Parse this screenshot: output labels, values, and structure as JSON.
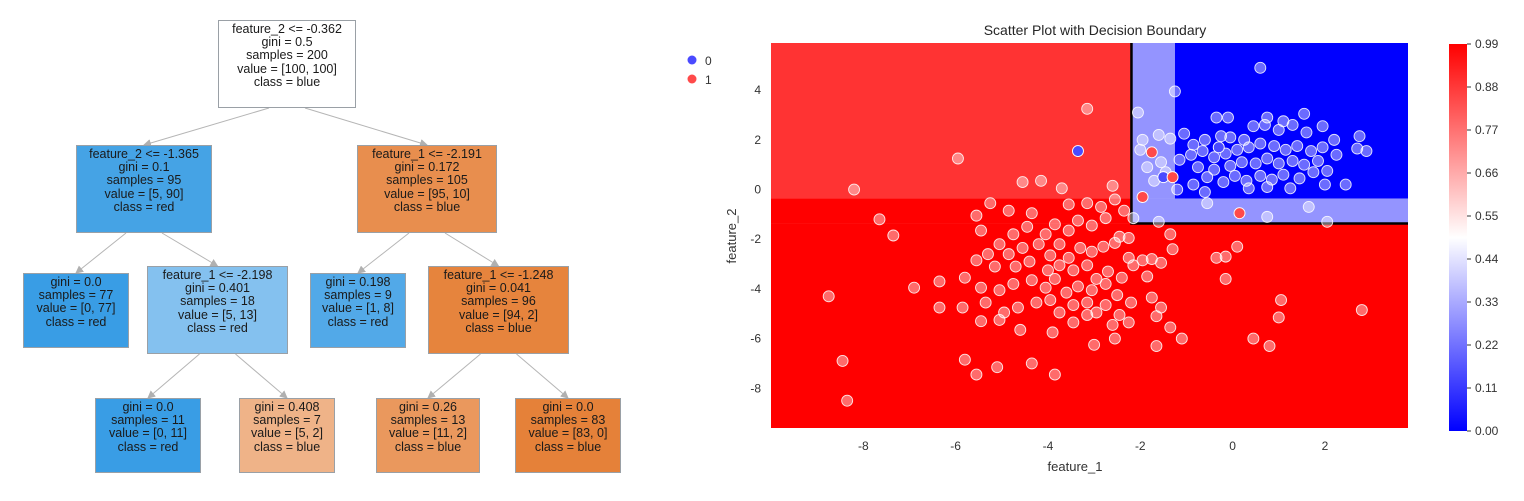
{
  "tree": {
    "nodes": [
      {
        "id": "n0",
        "lines": [
          "feature_2 <= -0.362",
          "gini = 0.5",
          "samples = 200",
          "value = [100, 100]",
          "class = blue"
        ],
        "fill": "#ffffff"
      },
      {
        "id": "n1",
        "lines": [
          "feature_2 <= -1.365",
          "gini = 0.1",
          "samples = 95",
          "value = [5, 90]",
          "class = red"
        ],
        "fill": "#45a3e5"
      },
      {
        "id": "n2",
        "lines": [
          "feature_1 <= -2.191",
          "gini = 0.172",
          "samples = 105",
          "value = [95, 10]",
          "class = blue"
        ],
        "fill": "#e88e4e"
      },
      {
        "id": "n3",
        "lines": [
          "gini = 0.0",
          "samples = 77",
          "value = [0, 77]",
          "class = red"
        ],
        "fill": "#399de5"
      },
      {
        "id": "n4",
        "lines": [
          "feature_1 <= -2.198",
          "gini = 0.401",
          "samples = 18",
          "value = [5, 13]",
          "class = red"
        ],
        "fill": "#84c1ef"
      },
      {
        "id": "n5",
        "lines": [
          "gini = 0.198",
          "samples = 9",
          "value = [1, 8]",
          "class = red"
        ],
        "fill": "#52a9e8"
      },
      {
        "id": "n6",
        "lines": [
          "feature_1 <= -1.248",
          "gini = 0.041",
          "samples = 96",
          "value = [94, 2]",
          "class = blue"
        ],
        "fill": "#e6843d"
      },
      {
        "id": "n7",
        "lines": [
          "gini = 0.0",
          "samples = 11",
          "value = [0, 11]",
          "class = red"
        ],
        "fill": "#399de5"
      },
      {
        "id": "n8",
        "lines": [
          "gini = 0.408",
          "samples = 7",
          "value = [5, 2]",
          "class = blue"
        ],
        "fill": "#efb388"
      },
      {
        "id": "n9",
        "lines": [
          "gini = 0.26",
          "samples = 13",
          "value = [11, 2]",
          "class = blue"
        ],
        "fill": "#ea985d"
      },
      {
        "id": "n10",
        "lines": [
          "gini = 0.0",
          "samples = 83",
          "value = [83, 0]",
          "class = blue"
        ],
        "fill": "#e58139"
      }
    ]
  },
  "chart_data": {
    "type": "scatter",
    "title": "Scatter Plot with Decision Boundary",
    "xlabel": "feature_1",
    "ylabel": "feature_2",
    "xlim": [
      -10,
      3.8
    ],
    "ylim": [
      -9.6,
      5.9
    ],
    "xticks": [
      -8,
      -6,
      -4,
      -2,
      0,
      2
    ],
    "yticks": [
      -8,
      -6,
      -4,
      -2,
      0,
      2,
      4
    ],
    "legend": {
      "position": "top-left",
      "entries": [
        {
          "label": "0",
          "color": "#4a4aff"
        },
        {
          "label": "1",
          "color": "#ff4a4a"
        }
      ]
    },
    "colorbar": {
      "ticks": [
        "0.00",
        "0.11",
        "0.22",
        "0.33",
        "0.44",
        "0.55",
        "0.66",
        "0.77",
        "0.88",
        "0.99"
      ],
      "cmap": "bwr"
    },
    "regions": [
      {
        "x": [
          -10,
          3.8
        ],
        "y": [
          -9.6,
          -1.365
        ],
        "prob": 1.0
      },
      {
        "x": [
          -10,
          -2.191
        ],
        "y": [
          -1.365,
          -0.362
        ],
        "prob": 1.0
      },
      {
        "x": [
          -10,
          -2.191
        ],
        "y": [
          -0.362,
          5.9
        ],
        "prob": 0.9
      },
      {
        "x": [
          -2.191,
          -1.248
        ],
        "y": [
          -0.362,
          5.9
        ],
        "prob": 0.29
      },
      {
        "x": [
          -1.248,
          3.8
        ],
        "y": [
          -0.362,
          5.9
        ],
        "prob": 0.0
      },
      {
        "x": [
          -2.198,
          3.8
        ],
        "y": [
          -1.365,
          -0.362
        ],
        "prob": 0.29
      }
    ],
    "boundary": [
      [
        -2.191,
        5.9
      ],
      [
        -2.191,
        -1.365
      ],
      [
        3.8,
        -1.365
      ]
    ],
    "series": [
      {
        "name": "0",
        "color": "#4a4aff",
        "points": [
          [
            -3.35,
            1.55
          ],
          [
            -1.5,
            0.5
          ],
          [
            -0.3,
            1.7
          ]
        ]
      },
      {
        "name": "1",
        "color": "#ff4a4a",
        "points": [
          [
            -1.75,
            1.5
          ],
          [
            -1.3,
            0.5
          ],
          [
            0.15,
            -0.95
          ],
          [
            -1.95,
            -0.3
          ]
        ]
      }
    ],
    "points_light": [
      [
        0.6,
        4.9
      ],
      [
        -1.25,
        3.95
      ],
      [
        -2.05,
        3.1
      ],
      [
        -0.35,
        2.9
      ],
      [
        -0.1,
        2.9
      ],
      [
        0.75,
        2.9
      ],
      [
        1.55,
        3.05
      ],
      [
        1.1,
        2.75
      ],
      [
        -1.95,
        2.0
      ],
      [
        -1.6,
        2.2
      ],
      [
        -1.35,
        2.05
      ],
      [
        -1.05,
        2.25
      ],
      [
        -0.85,
        1.8
      ],
      [
        -0.6,
        2.0
      ],
      [
        -0.25,
        2.15
      ],
      [
        -0.05,
        2.1
      ],
      [
        0.25,
        2.0
      ],
      [
        0.45,
        2.55
      ],
      [
        0.7,
        2.6
      ],
      [
        1.0,
        2.4
      ],
      [
        1.3,
        2.6
      ],
      [
        1.6,
        2.3
      ],
      [
        1.95,
        2.55
      ],
      [
        2.2,
        2.0
      ],
      [
        2.75,
        2.15
      ],
      [
        2.7,
        1.65
      ],
      [
        2.9,
        1.55
      ],
      [
        -2.0,
        1.6
      ],
      [
        -1.55,
        1.1
      ],
      [
        -1.15,
        1.2
      ],
      [
        -0.9,
        1.4
      ],
      [
        -0.65,
        1.55
      ],
      [
        -0.4,
        1.3
      ],
      [
        -0.15,
        1.45
      ],
      [
        0.1,
        1.6
      ],
      [
        0.35,
        1.7
      ],
      [
        0.6,
        1.85
      ],
      [
        0.9,
        1.75
      ],
      [
        1.15,
        1.6
      ],
      [
        1.4,
        1.75
      ],
      [
        1.7,
        1.55
      ],
      [
        1.95,
        1.7
      ],
      [
        2.25,
        1.4
      ],
      [
        -1.85,
        0.9
      ],
      [
        -1.45,
        0.7
      ],
      [
        -0.75,
        0.9
      ],
      [
        -0.4,
        0.8
      ],
      [
        -0.05,
        0.95
      ],
      [
        0.2,
        1.1
      ],
      [
        0.5,
        1.05
      ],
      [
        0.75,
        1.25
      ],
      [
        1.0,
        1.05
      ],
      [
        1.3,
        1.15
      ],
      [
        1.55,
        1.0
      ],
      [
        1.85,
        1.15
      ],
      [
        2.05,
        0.75
      ],
      [
        -1.7,
        0.35
      ],
      [
        -1.2,
        0.0
      ],
      [
        -0.85,
        0.2
      ],
      [
        -0.55,
        0.5
      ],
      [
        -0.2,
        0.3
      ],
      [
        0.05,
        0.55
      ],
      [
        0.3,
        0.35
      ],
      [
        0.6,
        0.55
      ],
      [
        0.85,
        0.4
      ],
      [
        1.1,
        0.6
      ],
      [
        1.45,
        0.45
      ],
      [
        1.75,
        0.7
      ],
      [
        2.0,
        0.2
      ],
      [
        2.45,
        0.2
      ],
      [
        -0.6,
        -0.1
      ],
      [
        0.35,
        0.05
      ],
      [
        0.75,
        0.1
      ],
      [
        1.25,
        0.05
      ],
      [
        -0.55,
        -0.55
      ],
      [
        0.75,
        -1.1
      ],
      [
        1.65,
        -0.7
      ],
      [
        2.05,
        -1.3
      ],
      [
        -3.15,
        3.25
      ],
      [
        -5.95,
        1.25
      ],
      [
        -8.2,
        0.0
      ],
      [
        -4.15,
        0.35
      ],
      [
        -3.7,
        0.05
      ],
      [
        -4.55,
        0.3
      ],
      [
        -2.6,
        0.15
      ],
      [
        -5.25,
        -0.55
      ],
      [
        -5.55,
        -1.05
      ],
      [
        -4.85,
        -0.85
      ],
      [
        -4.35,
        -0.95
      ],
      [
        -3.55,
        -0.6
      ],
      [
        -3.15,
        -0.55
      ],
      [
        -2.85,
        -0.7
      ],
      [
        -2.55,
        -0.4
      ],
      [
        -2.35,
        -0.85
      ],
      [
        -2.15,
        -1.15
      ],
      [
        -7.65,
        -1.2
      ],
      [
        -7.35,
        -1.85
      ],
      [
        -5.45,
        -1.65
      ],
      [
        -5.05,
        -2.2
      ],
      [
        -4.75,
        -1.8
      ],
      [
        -4.45,
        -1.5
      ],
      [
        -4.05,
        -1.8
      ],
      [
        -3.85,
        -1.4
      ],
      [
        -3.55,
        -1.65
      ],
      [
        -3.35,
        -1.25
      ],
      [
        -3.05,
        -1.45
      ],
      [
        -2.75,
        -1.15
      ],
      [
        -2.45,
        -1.9
      ],
      [
        -2.25,
        -1.95
      ],
      [
        -1.6,
        -1.3
      ],
      [
        -1.35,
        -1.8
      ],
      [
        -5.3,
        -2.6
      ],
      [
        -4.85,
        -2.6
      ],
      [
        -4.55,
        -2.35
      ],
      [
        -4.2,
        -2.2
      ],
      [
        -3.95,
        -2.65
      ],
      [
        -3.75,
        -2.2
      ],
      [
        -3.55,
        -2.75
      ],
      [
        -3.3,
        -2.35
      ],
      [
        -3.05,
        -2.5
      ],
      [
        -2.8,
        -2.3
      ],
      [
        -2.55,
        -2.15
      ],
      [
        -2.25,
        -2.75
      ],
      [
        -1.95,
        -2.85
      ],
      [
        -1.75,
        -2.8
      ],
      [
        -1.55,
        -2.95
      ],
      [
        -1.3,
        -2.4
      ],
      [
        -5.55,
        -2.85
      ],
      [
        -5.15,
        -3.1
      ],
      [
        -4.7,
        -3.1
      ],
      [
        -4.4,
        -2.9
      ],
      [
        -4.0,
        -3.25
      ],
      [
        -3.75,
        -3.05
      ],
      [
        -3.45,
        -3.25
      ],
      [
        -3.15,
        -3.05
      ],
      [
        -2.95,
        -3.6
      ],
      [
        -2.7,
        -3.3
      ],
      [
        -2.4,
        -3.55
      ],
      [
        -2.15,
        -3.05
      ],
      [
        -1.85,
        -3.5
      ],
      [
        -6.35,
        -3.7
      ],
      [
        -5.8,
        -3.55
      ],
      [
        -5.45,
        -3.95
      ],
      [
        -5.05,
        -4.05
      ],
      [
        -4.75,
        -3.8
      ],
      [
        -4.35,
        -3.65
      ],
      [
        -4.05,
        -3.95
      ],
      [
        -3.85,
        -3.6
      ],
      [
        -3.6,
        -4.15
      ],
      [
        -3.35,
        -3.9
      ],
      [
        -3.05,
        -4.05
      ],
      [
        -2.75,
        -3.8
      ],
      [
        -2.5,
        -4.25
      ],
      [
        -6.9,
        -3.95
      ],
      [
        -6.35,
        -4.75
      ],
      [
        -5.85,
        -4.75
      ],
      [
        -5.35,
        -4.55
      ],
      [
        -4.95,
        -4.95
      ],
      [
        -4.65,
        -4.75
      ],
      [
        -4.25,
        -4.55
      ],
      [
        -3.95,
        -4.45
      ],
      [
        -3.75,
        -4.95
      ],
      [
        -3.45,
        -4.65
      ],
      [
        -3.15,
        -4.55
      ],
      [
        -2.95,
        -4.95
      ],
      [
        -2.75,
        -4.65
      ],
      [
        -2.45,
        -5.05
      ],
      [
        -2.2,
        -4.55
      ],
      [
        -1.75,
        -4.35
      ],
      [
        -1.55,
        -4.75
      ],
      [
        -5.45,
        -5.3
      ],
      [
        -5.05,
        -5.25
      ],
      [
        -4.6,
        -5.65
      ],
      [
        -3.9,
        -5.75
      ],
      [
        -3.45,
        -5.35
      ],
      [
        -3.15,
        -5.05
      ],
      [
        -2.6,
        -5.45
      ],
      [
        -2.25,
        -5.35
      ],
      [
        -1.65,
        -5.1
      ],
      [
        -1.35,
        -5.55
      ],
      [
        -1.65,
        -6.3
      ],
      [
        -1.1,
        -6.0
      ],
      [
        -2.55,
        -6.0
      ],
      [
        -3.0,
        -6.25
      ],
      [
        -5.8,
        -6.85
      ],
      [
        -4.35,
        -7.0
      ],
      [
        -5.1,
        -7.15
      ],
      [
        -5.55,
        -7.45
      ],
      [
        -3.85,
        -7.45
      ],
      [
        -8.75,
        -4.3
      ],
      [
        -8.45,
        -6.9
      ],
      [
        -8.35,
        -8.5
      ],
      [
        2.8,
        -4.85
      ],
      [
        1.05,
        -4.45
      ],
      [
        1.0,
        -5.15
      ],
      [
        0.45,
        -6.0
      ],
      [
        0.8,
        -6.3
      ],
      [
        -0.35,
        -2.75
      ],
      [
        -0.15,
        -2.7
      ],
      [
        0.1,
        -2.3
      ],
      [
        -0.15,
        -3.6
      ]
    ]
  }
}
